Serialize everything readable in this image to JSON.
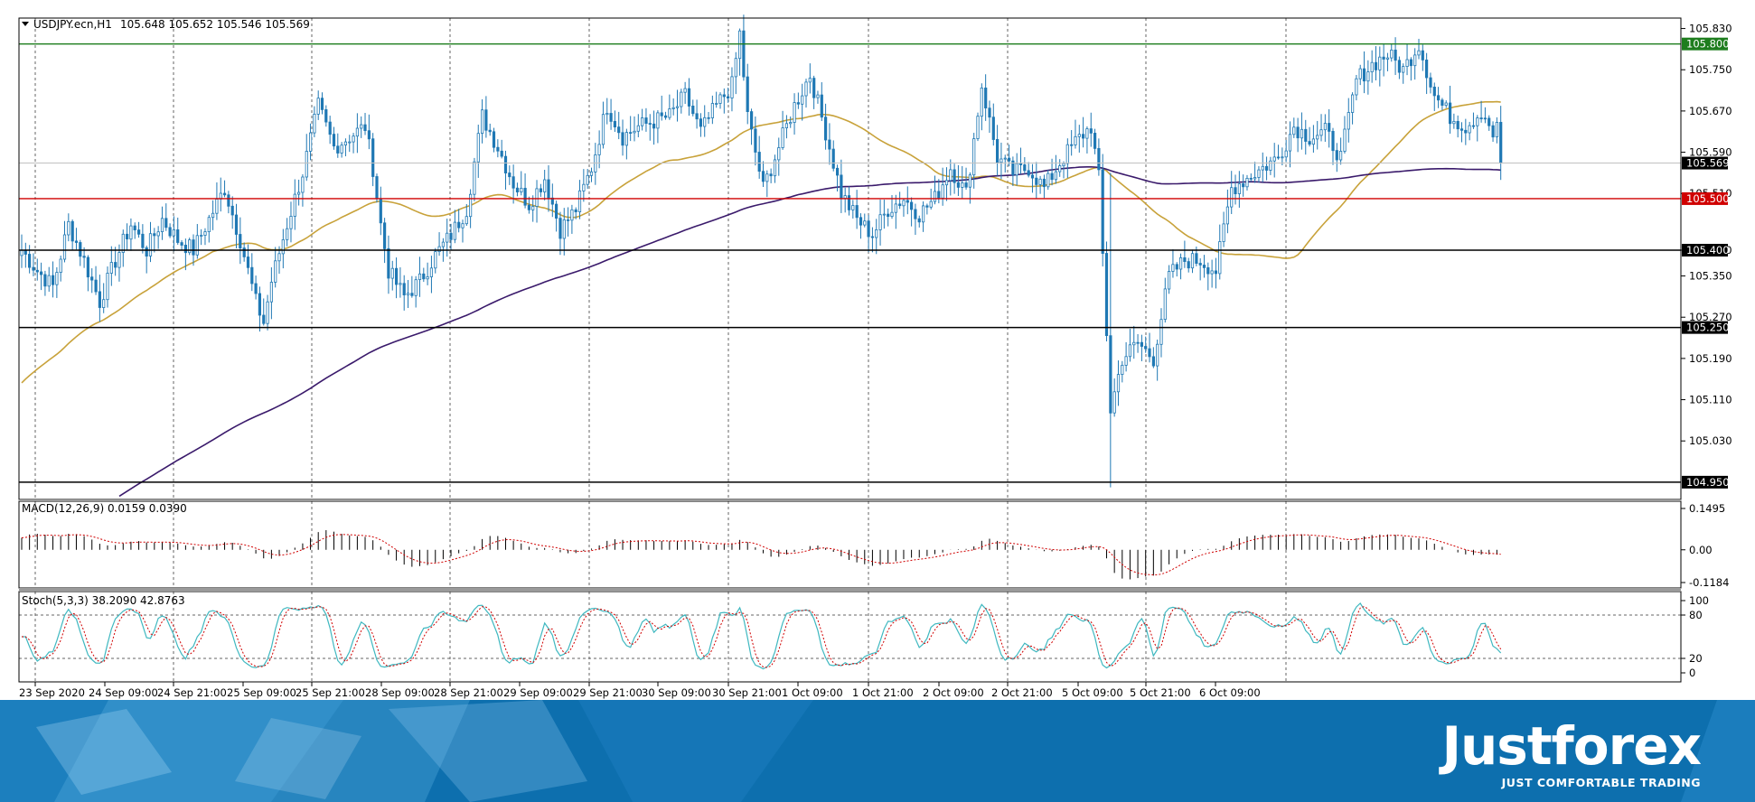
{
  "header": {
    "symbol_label": "USDJPY.ecn,H1",
    "ohlc": "105.648 105.652 105.546 105.569"
  },
  "chart_data": {
    "type": "candlestick",
    "symbol": "USDJPY.ecn",
    "timeframe": "H1",
    "price_ticks": [
      "105.830",
      "105.750",
      "105.670",
      "105.590",
      "105.510",
      "105.400",
      "105.350",
      "105.270",
      "105.190",
      "105.110",
      "105.030"
    ],
    "price_range": [
      104.92,
      105.845
    ],
    "x_tick_labels": [
      "23 Sep 2020",
      "24 Sep 09:00",
      "24 Sep 21:00",
      "25 Sep 09:00",
      "25 Sep 21:00",
      "28 Sep 09:00",
      "28 Sep 21:00",
      "29 Sep 09:00",
      "29 Sep 21:00",
      "30 Sep 09:00",
      "30 Sep 21:00",
      "1 Oct 09:00",
      "1 Oct 21:00",
      "2 Oct 09:00",
      "2 Oct 21:00",
      "5 Oct 09:00",
      "5 Oct 21:00",
      "6 Oct 09:00"
    ],
    "grid": true,
    "levels": [
      {
        "value": 105.8,
        "label": "105.800",
        "color": "#1e7d1e"
      },
      {
        "value": 105.5,
        "label": "105.500",
        "color": "#d00000"
      },
      {
        "value": 105.4,
        "label": "105.400",
        "color": "#000000"
      },
      {
        "value": 105.25,
        "label": "105.250",
        "color": "#000000"
      },
      {
        "value": 104.95,
        "label": "104.950",
        "color": "#000000"
      }
    ],
    "current_price": {
      "value": 105.569,
      "label": "105.569"
    },
    "candle_anchors": [
      [
        0,
        105.4
      ],
      [
        4,
        105.36
      ],
      [
        8,
        105.33
      ],
      [
        12,
        105.45
      ],
      [
        16,
        105.38
      ],
      [
        20,
        105.3
      ],
      [
        24,
        105.38
      ],
      [
        28,
        105.45
      ],
      [
        32,
        105.4
      ],
      [
        36,
        105.46
      ],
      [
        40,
        105.42
      ],
      [
        44,
        105.4
      ],
      [
        48,
        105.46
      ],
      [
        52,
        105.52
      ],
      [
        56,
        105.42
      ],
      [
        60,
        105.3
      ],
      [
        62,
        105.26
      ],
      [
        64,
        105.34
      ],
      [
        68,
        105.45
      ],
      [
        72,
        105.55
      ],
      [
        76,
        105.68
      ],
      [
        80,
        105.6
      ],
      [
        84,
        105.62
      ],
      [
        88,
        105.64
      ],
      [
        90,
        105.56
      ],
      [
        92,
        105.45
      ],
      [
        94,
        105.36
      ],
      [
        98,
        105.31
      ],
      [
        102,
        105.34
      ],
      [
        106,
        105.39
      ],
      [
        110,
        105.43
      ],
      [
        114,
        105.48
      ],
      [
        118,
        105.66
      ],
      [
        122,
        105.6
      ],
      [
        126,
        105.53
      ],
      [
        130,
        105.49
      ],
      [
        134,
        105.54
      ],
      [
        138,
        105.44
      ],
      [
        142,
        105.48
      ],
      [
        146,
        105.56
      ],
      [
        150,
        105.68
      ],
      [
        154,
        105.62
      ],
      [
        158,
        105.64
      ],
      [
        162,
        105.65
      ],
      [
        166,
        105.66
      ],
      [
        170,
        105.7
      ],
      [
        174,
        105.63
      ],
      [
        178,
        105.68
      ],
      [
        182,
        105.72
      ],
      [
        184,
        105.82
      ],
      [
        186,
        105.66
      ],
      [
        190,
        105.52
      ],
      [
        194,
        105.6
      ],
      [
        198,
        105.68
      ],
      [
        202,
        105.74
      ],
      [
        206,
        105.63
      ],
      [
        210,
        105.51
      ],
      [
        214,
        105.46
      ],
      [
        218,
        105.43
      ],
      [
        222,
        105.48
      ],
      [
        226,
        105.5
      ],
      [
        230,
        105.47
      ],
      [
        234,
        105.5
      ],
      [
        238,
        105.56
      ],
      [
        242,
        105.51
      ],
      [
        246,
        105.72
      ],
      [
        250,
        105.58
      ],
      [
        254,
        105.55
      ],
      [
        258,
        105.56
      ],
      [
        262,
        105.52
      ],
      [
        266,
        105.57
      ],
      [
        270,
        105.61
      ],
      [
        274,
        105.64
      ],
      [
        276,
        105.54
      ],
      [
        279,
        105.09
      ],
      [
        282,
        105.19
      ],
      [
        286,
        105.22
      ],
      [
        290,
        105.19
      ],
      [
        294,
        105.35
      ],
      [
        298,
        105.38
      ],
      [
        302,
        105.38
      ],
      [
        306,
        105.36
      ],
      [
        310,
        105.52
      ],
      [
        314,
        105.54
      ],
      [
        318,
        105.56
      ],
      [
        322,
        105.58
      ],
      [
        326,
        105.64
      ],
      [
        330,
        105.62
      ],
      [
        334,
        105.63
      ],
      [
        338,
        105.58
      ],
      [
        342,
        105.73
      ],
      [
        346,
        105.76
      ],
      [
        350,
        105.78
      ],
      [
        354,
        105.75
      ],
      [
        358,
        105.8
      ],
      [
        362,
        105.7
      ],
      [
        366,
        105.66
      ],
      [
        370,
        105.64
      ],
      [
        374,
        105.67
      ],
      [
        376,
        105.648
      ],
      [
        378,
        105.569
      ]
    ],
    "indicators": {
      "ma_fast": {
        "color": "#c8a23a"
      },
      "ma_slow": {
        "color": "#3a1a6b"
      }
    }
  },
  "macd": {
    "label": "MACD(12,26,9) 0.0159 0.0390",
    "ticks": [
      "0.1495",
      "0.00",
      "-0.1184"
    ]
  },
  "stoch": {
    "label": "Stoch(5,3,3) 38.2090 42.8763",
    "ticks": [
      "100",
      "80",
      "20",
      "0"
    ]
  },
  "footer": {
    "brand": "Justforex",
    "tagline": "JUST COMFORTABLE TRADING"
  }
}
